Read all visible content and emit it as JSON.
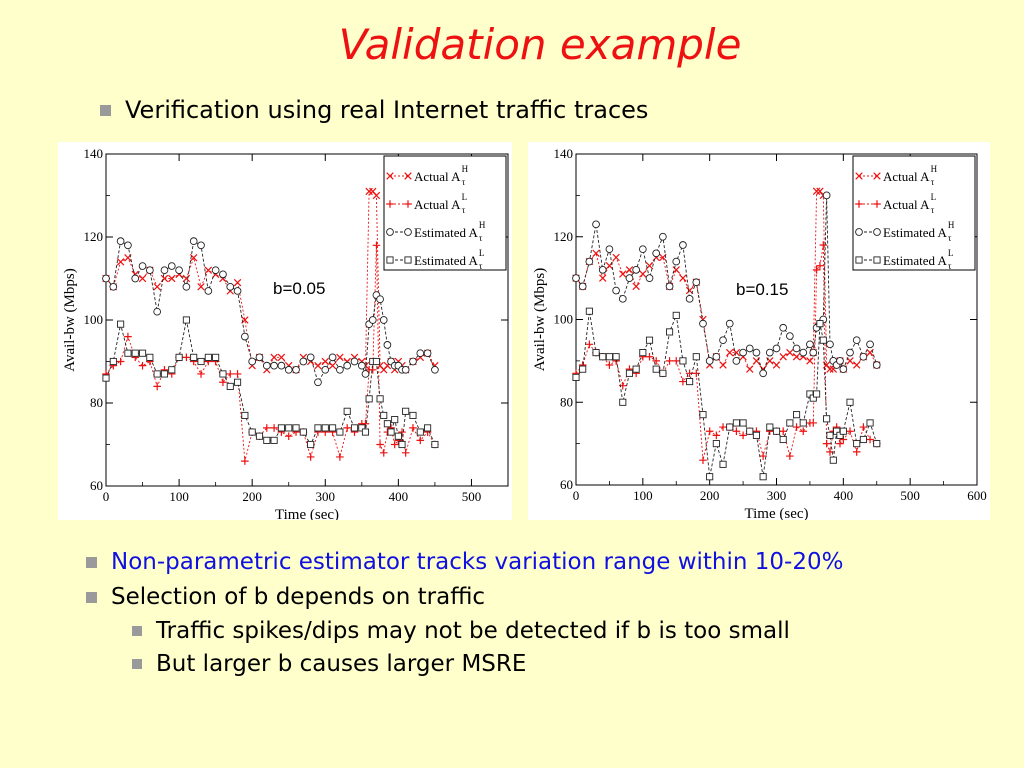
{
  "slide": {
    "title": "Validation example",
    "bullets": [
      "Verification using real Internet traffic traces",
      "Non-parametric estimator tracks variation range within 10-20%",
      "Selection of b depends on traffic",
      "Traffic spikes/dips may not be detected if b is too small",
      "But larger b causes larger MSRE"
    ]
  },
  "colors": {
    "title": "#EE1111",
    "highlight": "#1010E0",
    "actual": "#EE1111",
    "estimated": "#222222",
    "background": "#FFFFCC"
  },
  "chart_data": [
    {
      "type": "line",
      "annotation": "b=0.05",
      "xlabel": "Time (sec)",
      "ylabel": "Avail-bw (Mbps)",
      "xlim": [
        0,
        550
      ],
      "ylim": [
        60,
        140
      ],
      "xticks": [
        0,
        100,
        200,
        300,
        400,
        500
      ],
      "yticks": [
        60,
        80,
        100,
        120,
        140
      ],
      "legend_position": "top-right",
      "grid": false,
      "series": [
        {
          "name": "Actual A_τ^H",
          "legend": {
            "base": "Actual A",
            "sup": "H",
            "sub": "τ"
          },
          "marker": "x",
          "color": "#EE1111",
          "dash": "2,2",
          "x": [
            0,
            10,
            20,
            30,
            40,
            50,
            60,
            70,
            80,
            90,
            100,
            110,
            120,
            130,
            140,
            150,
            160,
            170,
            180,
            190,
            200,
            210,
            220,
            230,
            240,
            250,
            260,
            270,
            280,
            290,
            300,
            310,
            320,
            330,
            340,
            350,
            355,
            360,
            365,
            370,
            375,
            380,
            385,
            390,
            395,
            400,
            405,
            410,
            420,
            430,
            440,
            450
          ],
          "y": [
            110,
            108,
            114,
            115,
            111,
            110,
            112,
            108,
            110,
            110,
            111,
            110,
            115,
            108,
            112,
            111,
            110,
            107,
            109,
            100,
            89,
            91,
            88,
            91,
            91,
            89,
            88,
            91,
            90,
            89,
            90,
            89,
            91,
            90,
            91,
            90,
            89,
            131,
            131,
            130,
            89,
            88,
            89,
            90,
            88,
            90,
            89,
            88,
            90,
            91,
            92,
            89
          ]
        },
        {
          "name": "Actual A_τ^L",
          "legend": {
            "base": "Actual A",
            "sup": "L",
            "sub": "τ"
          },
          "marker": "+",
          "color": "#EE1111",
          "dash": "2,2",
          "x": [
            0,
            10,
            20,
            30,
            40,
            50,
            60,
            70,
            80,
            90,
            100,
            110,
            120,
            130,
            140,
            150,
            160,
            170,
            180,
            190,
            200,
            210,
            220,
            230,
            240,
            250,
            260,
            270,
            280,
            290,
            300,
            310,
            320,
            330,
            340,
            350,
            355,
            360,
            365,
            370,
            375,
            380,
            385,
            390,
            395,
            400,
            405,
            410,
            420,
            430,
            440,
            450
          ],
          "y": [
            87,
            89,
            90,
            96,
            91,
            89,
            90,
            84,
            88,
            87,
            91,
            91,
            90,
            87,
            90,
            90,
            85,
            87,
            87,
            66,
            73,
            72,
            74,
            74,
            73,
            72,
            73,
            73,
            67,
            73,
            73,
            73,
            67,
            74,
            73,
            75,
            75,
            88,
            88,
            118,
            70,
            68,
            73,
            74,
            70,
            71,
            73,
            68,
            74,
            71,
            73,
            70
          ]
        },
        {
          "name": "Estimated A_τ^H",
          "legend": {
            "base": "Estimated A",
            "sup": "H",
            "sub": "τ"
          },
          "marker": "o",
          "color": "#222222",
          "dash": "3,2",
          "x": [
            0,
            10,
            20,
            30,
            40,
            50,
            60,
            70,
            80,
            90,
            100,
            110,
            120,
            130,
            140,
            150,
            160,
            170,
            180,
            190,
            200,
            210,
            220,
            230,
            240,
            250,
            260,
            270,
            280,
            290,
            300,
            310,
            320,
            330,
            340,
            350,
            355,
            360,
            365,
            370,
            375,
            380,
            385,
            390,
            395,
            400,
            405,
            410,
            420,
            430,
            440,
            450
          ],
          "y": [
            110,
            108,
            119,
            118,
            110,
            113,
            112,
            102,
            112,
            113,
            112,
            108,
            119,
            118,
            107,
            112,
            111,
            108,
            107,
            96,
            90,
            91,
            89,
            89,
            89,
            88,
            88,
            90,
            91,
            85,
            88,
            91,
            88,
            89,
            90,
            89,
            87,
            99,
            100,
            106,
            105,
            100,
            94,
            90,
            89,
            89,
            88,
            88,
            90,
            92,
            92,
            88
          ]
        },
        {
          "name": "Estimated A_τ^L",
          "legend": {
            "base": "Estimated A",
            "sup": "L",
            "sub": "τ"
          },
          "marker": "s",
          "color": "#222222",
          "dash": "3,2",
          "x": [
            0,
            10,
            20,
            30,
            40,
            50,
            60,
            70,
            80,
            90,
            100,
            110,
            120,
            130,
            140,
            150,
            160,
            170,
            180,
            190,
            200,
            210,
            220,
            230,
            240,
            250,
            260,
            270,
            280,
            290,
            300,
            310,
            320,
            330,
            340,
            350,
            355,
            360,
            365,
            370,
            375,
            380,
            385,
            390,
            395,
            400,
            405,
            410,
            420,
            430,
            440,
            450
          ],
          "y": [
            86,
            90,
            99,
            92,
            92,
            92,
            91,
            87,
            87,
            88,
            91,
            100,
            91,
            90,
            91,
            91,
            87,
            84,
            85,
            77,
            73,
            72,
            71,
            71,
            74,
            74,
            74,
            73,
            70,
            74,
            74,
            74,
            73,
            78,
            74,
            74,
            73,
            81,
            90,
            90,
            81,
            77,
            75,
            73,
            76,
            72,
            70,
            78,
            77,
            73,
            74,
            70
          ]
        }
      ]
    },
    {
      "type": "line",
      "annotation": "b=0.15",
      "xlabel": "Time (sec)",
      "ylabel": "Avail-bw (Mbps)",
      "xlim": [
        0,
        600
      ],
      "ylim": [
        60,
        140
      ],
      "xticks": [
        0,
        100,
        200,
        300,
        400,
        500,
        600
      ],
      "yticks": [
        60,
        80,
        100,
        120,
        140
      ],
      "legend_position": "top-right",
      "grid": false,
      "series": [
        {
          "name": "Actual A_τ^H",
          "legend": {
            "base": "Actual A",
            "sup": "H",
            "sub": "τ"
          },
          "marker": "x",
          "color": "#EE1111",
          "dash": "2,2",
          "x": [
            0,
            10,
            20,
            30,
            40,
            50,
            60,
            70,
            80,
            90,
            100,
            110,
            120,
            130,
            140,
            150,
            160,
            170,
            180,
            190,
            200,
            210,
            220,
            230,
            240,
            250,
            260,
            270,
            280,
            290,
            300,
            310,
            320,
            330,
            340,
            350,
            355,
            360,
            365,
            370,
            375,
            380,
            385,
            390,
            395,
            400,
            410,
            420,
            430,
            440,
            450
          ],
          "y": [
            110,
            108,
            114,
            116,
            110,
            113,
            115,
            111,
            112,
            108,
            111,
            113,
            115,
            115,
            108,
            112,
            110,
            107,
            109,
            100,
            89,
            91,
            89,
            92,
            92,
            91,
            88,
            90,
            88,
            90,
            89,
            91,
            92,
            91,
            91,
            90,
            92,
            131,
            131,
            130,
            89,
            88,
            88,
            90,
            90,
            88,
            90,
            89,
            91,
            92,
            89
          ]
        },
        {
          "name": "Actual A_τ^L",
          "legend": {
            "base": "Actual A",
            "sup": "L",
            "sub": "τ"
          },
          "marker": "+",
          "color": "#EE1111",
          "dash": "2,2",
          "x": [
            0,
            10,
            20,
            30,
            40,
            50,
            60,
            70,
            80,
            90,
            100,
            110,
            120,
            130,
            140,
            150,
            160,
            170,
            180,
            190,
            200,
            210,
            220,
            230,
            240,
            250,
            260,
            270,
            280,
            290,
            300,
            310,
            320,
            330,
            340,
            350,
            355,
            360,
            365,
            370,
            375,
            380,
            385,
            390,
            395,
            400,
            410,
            420,
            430,
            440,
            450
          ],
          "y": [
            87,
            89,
            94,
            92,
            91,
            89,
            90,
            84,
            88,
            87,
            91,
            91,
            90,
            87,
            90,
            90,
            85,
            87,
            87,
            66,
            73,
            72,
            74,
            74,
            73,
            72,
            73,
            73,
            67,
            73,
            73,
            73,
            67,
            74,
            73,
            75,
            75,
            112,
            113,
            118,
            70,
            68,
            73,
            74,
            70,
            71,
            73,
            68,
            74,
            71,
            70
          ]
        },
        {
          "name": "Estimated A_τ^H",
          "legend": {
            "base": "Estimated A",
            "sup": "H",
            "sub": "τ"
          },
          "marker": "o",
          "color": "#222222",
          "dash": "3,2",
          "x": [
            0,
            10,
            20,
            30,
            40,
            50,
            60,
            70,
            80,
            90,
            100,
            110,
            120,
            130,
            140,
            150,
            160,
            170,
            180,
            190,
            200,
            210,
            220,
            230,
            240,
            250,
            260,
            270,
            280,
            290,
            300,
            310,
            320,
            330,
            340,
            350,
            355,
            360,
            365,
            370,
            375,
            380,
            385,
            390,
            395,
            400,
            410,
            420,
            430,
            440,
            450
          ],
          "y": [
            110,
            108,
            114,
            123,
            112,
            117,
            107,
            105,
            110,
            112,
            117,
            110,
            116,
            120,
            108,
            114,
            118,
            105,
            109,
            99,
            90,
            91,
            95,
            99,
            90,
            92,
            93,
            92,
            87,
            92,
            93,
            98,
            96,
            93,
            92,
            94,
            92,
            98,
            99,
            100,
            130,
            94,
            90,
            89,
            90,
            88,
            92,
            95,
            91,
            94,
            89
          ]
        },
        {
          "name": "Estimated A_τ^L",
          "legend": {
            "base": "Estimated A",
            "sup": "L",
            "sub": "τ"
          },
          "marker": "s",
          "color": "#222222",
          "dash": "3,2",
          "x": [
            0,
            10,
            20,
            30,
            40,
            50,
            60,
            70,
            80,
            90,
            100,
            110,
            120,
            130,
            140,
            150,
            160,
            170,
            180,
            190,
            200,
            210,
            220,
            230,
            240,
            250,
            260,
            270,
            280,
            290,
            300,
            310,
            320,
            330,
            340,
            350,
            355,
            360,
            365,
            370,
            375,
            380,
            385,
            390,
            395,
            400,
            410,
            420,
            430,
            440,
            450
          ],
          "y": [
            86,
            88,
            102,
            92,
            91,
            91,
            91,
            80,
            87,
            88,
            92,
            95,
            88,
            87,
            97,
            101,
            90,
            85,
            91,
            77,
            62,
            70,
            65,
            74,
            75,
            75,
            73,
            72,
            62,
            74,
            73,
            71,
            75,
            77,
            75,
            82,
            81,
            82,
            99,
            95,
            76,
            72,
            66,
            73,
            72,
            73,
            80,
            70,
            71,
            75,
            70
          ]
        }
      ]
    }
  ]
}
